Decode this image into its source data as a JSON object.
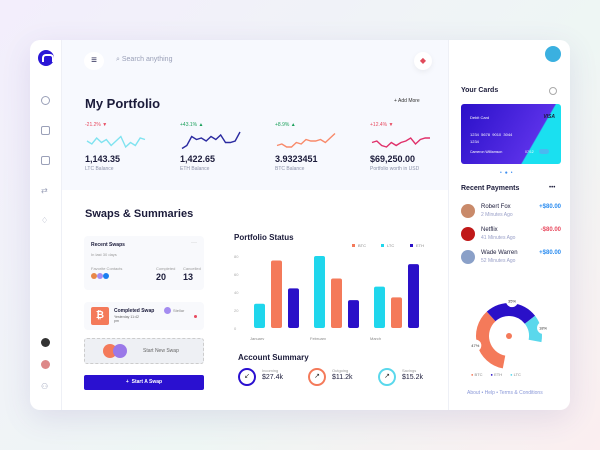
{
  "search": {
    "placeholder": "Search anything"
  },
  "portfolio": {
    "title": "My Portfolio",
    "add_more": "+ Add More",
    "coins": [
      {
        "change": "-21.2% ▼",
        "value": "1,143.35",
        "label": "LTC Balance",
        "color": "#7fe3f0",
        "change_color": "#e84a5f",
        "trend": [
          6,
          4,
          8,
          5,
          7,
          3,
          6,
          9,
          2,
          5,
          3,
          8,
          7
        ]
      },
      {
        "change": "+43.1% ▲",
        "value": "1,422.65",
        "label": "ETH Balance",
        "color": "#2a2aa0",
        "change_color": "#1aa05a",
        "trend": [
          1,
          3,
          9,
          7,
          8,
          6,
          9,
          7,
          10,
          5,
          5,
          6,
          12
        ]
      },
      {
        "change": "+8.9% ▲",
        "value": "3.9323451",
        "label": "BTC Balance",
        "color": "#f88a6a",
        "change_color": "#1aa05a",
        "trend": [
          3,
          4,
          2,
          2,
          5,
          4,
          7,
          6,
          6,
          7,
          5,
          8,
          11
        ]
      },
      {
        "change": "+12.4% ▼",
        "value": "$69,250.00",
        "label": "Portfolio worth in USD",
        "color": "#e0306a",
        "change_color": "#e84a5f",
        "trend": [
          5,
          6,
          3,
          2,
          5,
          3,
          5,
          6,
          8,
          4,
          7,
          8,
          8
        ]
      }
    ]
  },
  "swaps": {
    "title": "Swaps & Summaries",
    "recent_title": "Recent Swaps",
    "period": "In last 30 days",
    "fav_contacts": "Favorite Contacts",
    "completed_label": "Completed",
    "completed": "20",
    "cancelled_label": "Cancelled",
    "cancelled": "13",
    "completed_swap": {
      "title": "Completed Swap",
      "time": "Yesterday 11:42 pm",
      "user": "Stellar"
    },
    "new_swap": "Start New Swap",
    "start_button": "Start A Swap"
  },
  "chart_data": {
    "type": "bar",
    "title": "Portfolio Status",
    "categories": [
      "January",
      "February",
      "March"
    ],
    "series": [
      {
        "name": "BTC",
        "color": "#f47a5a",
        "values": [
          75,
          55,
          34
        ]
      },
      {
        "name": "LTC",
        "color": "#1fd6ec",
        "values": [
          27,
          80,
          46
        ]
      },
      {
        "name": "ETH",
        "color": "#2a10c8",
        "values": [
          44,
          31,
          71
        ]
      }
    ],
    "order": [
      "LTC",
      "BTC",
      "ETH"
    ],
    "ylim": [
      0,
      80
    ],
    "yticks": [
      0,
      20,
      40,
      60,
      80
    ],
    "legend": "top-right"
  },
  "account": {
    "title": "Account Summary",
    "items": [
      {
        "label": "Incoming",
        "value": "$27.4k",
        "icon": "↙",
        "color": "#2a10d0"
      },
      {
        "label": "Outgoing",
        "value": "$11.2k",
        "icon": "↗",
        "color": "#f47a5a"
      },
      {
        "label": "Savings",
        "value": "$15.2k",
        "icon": "↗",
        "color": "#5ad8ec"
      }
    ]
  },
  "cards": {
    "title": "Your Cards",
    "type": "Debit Card",
    "brand": "VISA",
    "number": "1234  5678  9010  3044",
    "number2": "1234",
    "holder": "Cameron Williamson",
    "expiry": "07/12"
  },
  "payments": {
    "title": "Recent Payments",
    "more": "•••",
    "items": [
      {
        "name": "Robert Fox",
        "time": "2 Minutes Ago",
        "amount": "+$80.00",
        "color": "#2a8cf0"
      },
      {
        "name": "Netflix",
        "time": "41 Minutes Ago",
        "amount": "-$80.00",
        "color": "#e84a5f"
      },
      {
        "name": "Wade Warren",
        "time": "52 Minutes Ago",
        "amount": "+$80.00",
        "color": "#2a8cf0"
      }
    ]
  },
  "donut": {
    "slices": [
      {
        "name": "BTC",
        "pct": "47%",
        "value": 47,
        "color": "#f47a5a"
      },
      {
        "name": "ETH",
        "pct": "35%",
        "value": 35,
        "color": "#2a10c8"
      },
      {
        "name": "LTC",
        "pct": "18%",
        "value": 18,
        "color": "#5ad8ec"
      }
    ]
  },
  "footer": {
    "about": "About",
    "help": "Help",
    "terms": "Terms & Conditions"
  }
}
